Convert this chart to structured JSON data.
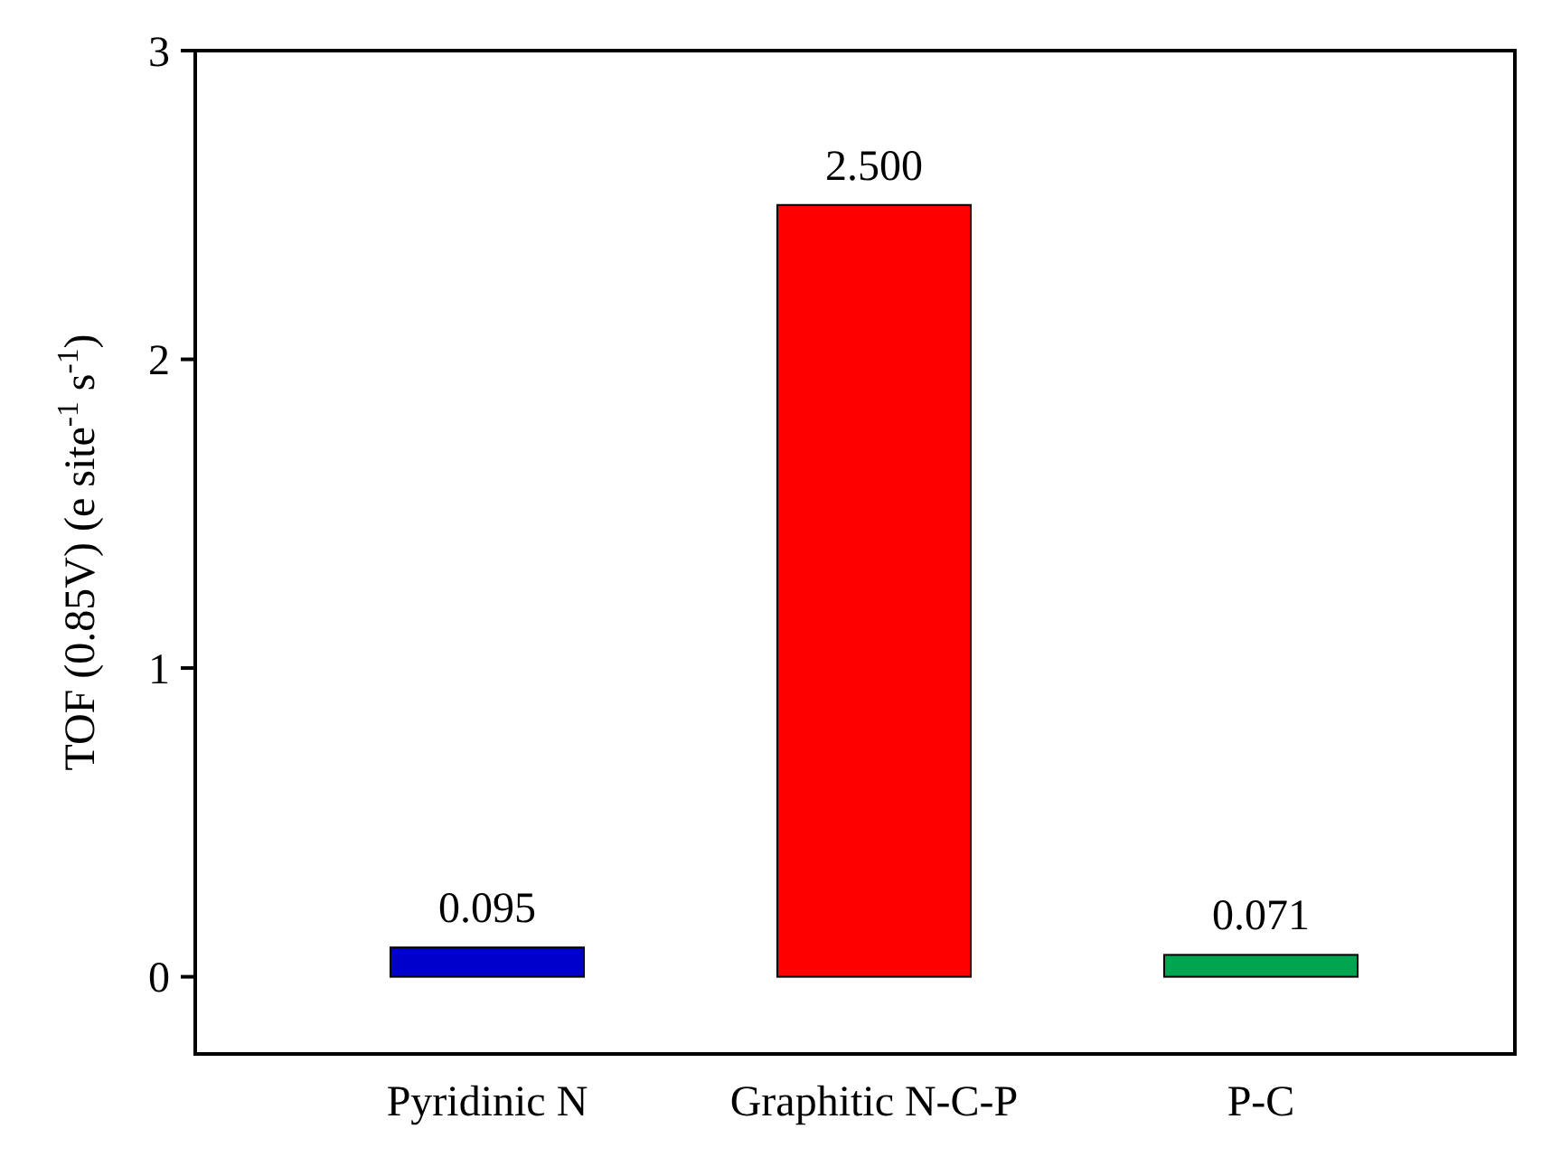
{
  "chart_data": {
    "type": "bar",
    "ylabel": "TOF (0.85V) (e site$^{-1}$ s$^{-1}$)",
    "categories": [
      "Pyridinic N",
      "Graphitic N-C-P",
      "P-C"
    ],
    "values": [
      0.095,
      2.5,
      0.071
    ],
    "colors": [
      "#0000cc",
      "#ff0000",
      "#00a550"
    ],
    "value_labels": [
      "0.095",
      "2.500",
      "0.071"
    ],
    "ylim": [
      -0.25,
      3
    ],
    "yticks": [
      0,
      1,
      2,
      3
    ],
    "grid": false
  }
}
